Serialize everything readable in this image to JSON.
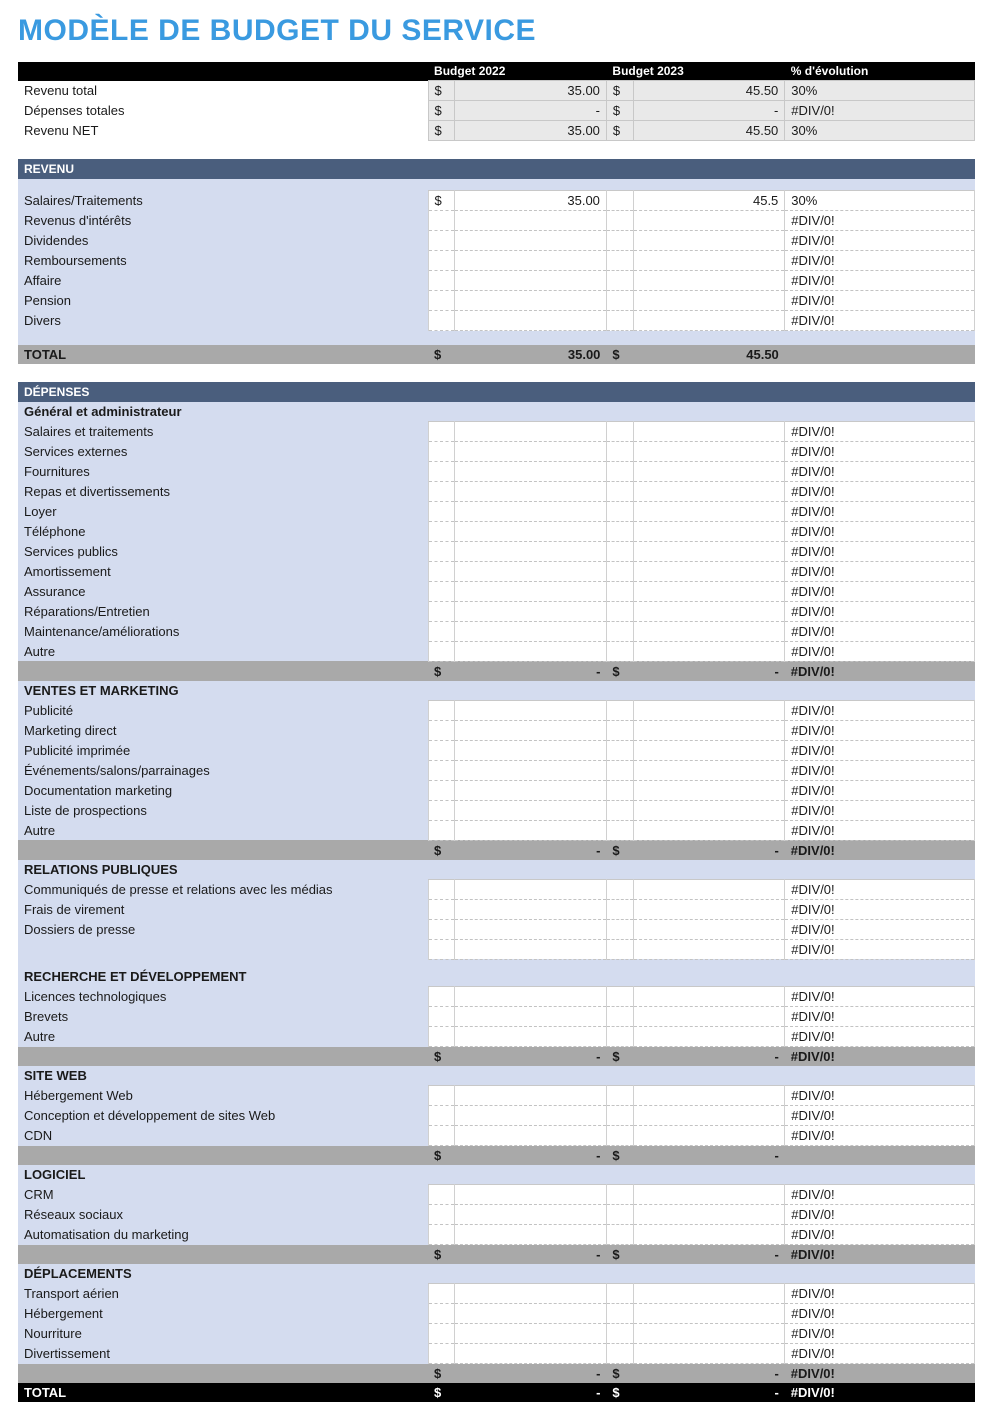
{
  "title": "MODÈLE DE BUDGET DU SERVICE",
  "colors": {
    "title": "#3a9ae0",
    "header_bg": "#000000",
    "section_bg": "#4a5e7d",
    "body_bg": "#d4dcef",
    "subtotal_bg": "#a9a9a9",
    "summary_cell_bg": "#e9e9e9"
  },
  "columns": {
    "budget_a": "Budget 2022",
    "budget_b": "Budget 2023",
    "pct": "% d'évolution"
  },
  "summary": [
    {
      "label": "Revenu total",
      "a_cur": "$",
      "a_val": "35.00",
      "b_cur": "$",
      "b_val": "45.50",
      "pct": "30%"
    },
    {
      "label": "Dépenses totales",
      "a_cur": "$",
      "a_val": "-",
      "b_cur": "$",
      "b_val": "-",
      "pct": "#DIV/0!"
    },
    {
      "label": "Revenu NET",
      "a_cur": "$",
      "a_val": "35.00",
      "b_cur": "$",
      "b_val": "45.50",
      "pct": "30%"
    }
  ],
  "revenu": {
    "header": "REVENU",
    "rows": [
      {
        "label": "Salaires/Traitements",
        "a_cur": "$",
        "a_val": "35.00",
        "b_val": "45.5",
        "pct": "30%"
      },
      {
        "label": "Revenus d'intérêts",
        "a_cur": "",
        "a_val": "",
        "b_val": "",
        "pct": "#DIV/0!"
      },
      {
        "label": "Dividendes",
        "a_cur": "",
        "a_val": "",
        "b_val": "",
        "pct": "#DIV/0!"
      },
      {
        "label": "Remboursements",
        "a_cur": "",
        "a_val": "",
        "b_val": "",
        "pct": "#DIV/0!"
      },
      {
        "label": "Affaire",
        "a_cur": "",
        "a_val": "",
        "b_val": "",
        "pct": "#DIV/0!"
      },
      {
        "label": "Pension",
        "a_cur": "",
        "a_val": "",
        "b_val": "",
        "pct": "#DIV/0!"
      },
      {
        "label": "Divers",
        "a_cur": "",
        "a_val": "",
        "b_val": "",
        "pct": "#DIV/0!"
      }
    ],
    "total": {
      "label": "TOTAL",
      "a_cur": "$",
      "a_val": "35.00",
      "b_cur": "$",
      "b_val": "45.50",
      "pct": ""
    }
  },
  "depenses": {
    "header": "DÉPENSES",
    "groups": [
      {
        "title": "Général et administrateur",
        "rows": [
          {
            "label": "Salaires et traitements",
            "pct": "#DIV/0!"
          },
          {
            "label": "Services externes",
            "pct": "#DIV/0!"
          },
          {
            "label": "Fournitures",
            "pct": "#DIV/0!"
          },
          {
            "label": "Repas et divertissements",
            "pct": "#DIV/0!"
          },
          {
            "label": "Loyer",
            "pct": "#DIV/0!"
          },
          {
            "label": "Téléphone",
            "pct": "#DIV/0!"
          },
          {
            "label": "Services publics",
            "pct": "#DIV/0!"
          },
          {
            "label": "Amortissement",
            "pct": "#DIV/0!"
          },
          {
            "label": "Assurance",
            "pct": "#DIV/0!"
          },
          {
            "label": "Réparations/Entretien",
            "pct": "#DIV/0!"
          },
          {
            "label": "Maintenance/améliorations",
            "pct": "#DIV/0!"
          },
          {
            "label": "Autre",
            "pct": "#DIV/0!"
          }
        ],
        "subtotal": {
          "a_cur": "$",
          "a_val": "-",
          "b_cur": "$",
          "b_val": "-",
          "pct": "#DIV/0!"
        }
      },
      {
        "title": "VENTES ET MARKETING",
        "rows": [
          {
            "label": "Publicité",
            "pct": "#DIV/0!"
          },
          {
            "label": "Marketing direct",
            "pct": "#DIV/0!"
          },
          {
            "label": "Publicité imprimée",
            "pct": "#DIV/0!"
          },
          {
            "label": "Événements/salons/parrainages",
            "pct": "#DIV/0!"
          },
          {
            "label": "Documentation marketing",
            "pct": "#DIV/0!"
          },
          {
            "label": "Liste de prospections",
            "pct": "#DIV/0!"
          },
          {
            "label": "Autre",
            "pct": "#DIV/0!"
          }
        ],
        "subtotal": {
          "a_cur": "$",
          "a_val": "-",
          "b_cur": "$",
          "b_val": "-",
          "pct": "#DIV/0!"
        }
      },
      {
        "title": "RELATIONS PUBLIQUES",
        "rows": [
          {
            "label": "Communiqués de presse et relations avec les médias",
            "pct": "#DIV/0!"
          },
          {
            "label": "Frais de virement",
            "pct": "#DIV/0!"
          },
          {
            "label": "Dossiers de presse",
            "pct": "#DIV/0!"
          },
          {
            "label": "",
            "pct": "#DIV/0!"
          }
        ],
        "subtotal": null
      },
      {
        "title": "RECHERCHE ET DÉVELOPPEMENT",
        "rows": [
          {
            "label": "Licences technologiques",
            "pct": "#DIV/0!"
          },
          {
            "label": "Brevets",
            "pct": "#DIV/0!"
          },
          {
            "label": "Autre",
            "pct": "#DIV/0!"
          }
        ],
        "subtotal": {
          "a_cur": "$",
          "a_val": "-",
          "b_cur": "$",
          "b_val": "-",
          "pct": "#DIV/0!"
        }
      },
      {
        "title": "SITE WEB",
        "rows": [
          {
            "label": "Hébergement Web",
            "pct": "#DIV/0!"
          },
          {
            "label": "Conception et développement de sites Web",
            "pct": "#DIV/0!"
          },
          {
            "label": "CDN",
            "pct": "#DIV/0!"
          }
        ],
        "subtotal": {
          "a_cur": "$",
          "a_val": "-",
          "b_cur": "$",
          "b_val": "-",
          "pct": ""
        }
      },
      {
        "title": "LOGICIEL",
        "rows": [
          {
            "label": "CRM",
            "pct": "#DIV/0!"
          },
          {
            "label": "Réseaux sociaux",
            "pct": "#DIV/0!"
          },
          {
            "label": "Automatisation du marketing",
            "pct": "#DIV/0!"
          }
        ],
        "subtotal": {
          "a_cur": "$",
          "a_val": "-",
          "b_cur": "$",
          "b_val": "-",
          "pct": "#DIV/0!"
        }
      },
      {
        "title": "DÉPLACEMENTS",
        "rows": [
          {
            "label": "Transport aérien",
            "pct": "#DIV/0!"
          },
          {
            "label": "Hébergement",
            "pct": "#DIV/0!"
          },
          {
            "label": "Nourriture",
            "pct": "#DIV/0!"
          },
          {
            "label": "Divertissement",
            "pct": "#DIV/0!"
          }
        ],
        "subtotal": {
          "a_cur": "$",
          "a_val": "-",
          "b_cur": "$",
          "b_val": "-",
          "pct": "#DIV/0!"
        }
      }
    ],
    "total": {
      "label": "TOTAL",
      "a_cur": "$",
      "a_val": "-",
      "b_cur": "$",
      "b_val": "-",
      "pct": "#DIV/0!"
    }
  }
}
